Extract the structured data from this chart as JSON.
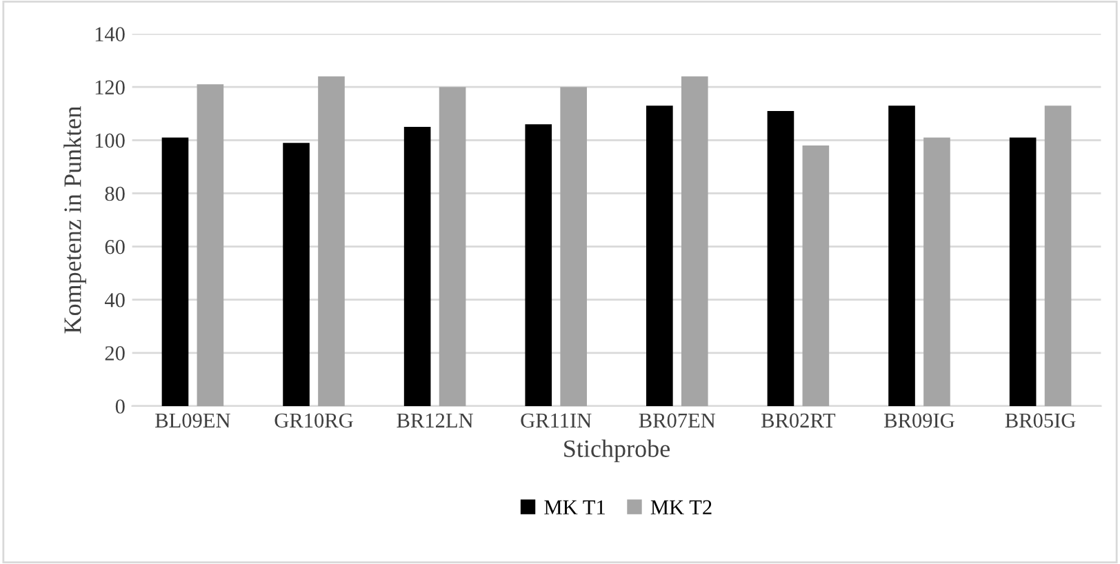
{
  "chart_data": {
    "type": "bar",
    "xlabel": "Stichprobe",
    "ylabel": "Kompetenz in Punkten",
    "categories": [
      "BL09EN",
      "GR10RG",
      "BR12LN",
      "GR11IN",
      "BR07EN",
      "BR02RT",
      "BR09IG",
      "BR05IG"
    ],
    "series": [
      {
        "name": "MK T1",
        "color": "#000000",
        "values": [
          101,
          99,
          105,
          106,
          113,
          111,
          113,
          101
        ]
      },
      {
        "name": "MK T2",
        "color": "#a5a5a5",
        "values": [
          121,
          124,
          120,
          120,
          124,
          98,
          101,
          113
        ]
      }
    ],
    "ylim": [
      0,
      140
    ],
    "yticks": [
      0,
      20,
      40,
      60,
      80,
      100,
      120,
      140
    ],
    "grid": "y",
    "legend": "bottom"
  }
}
